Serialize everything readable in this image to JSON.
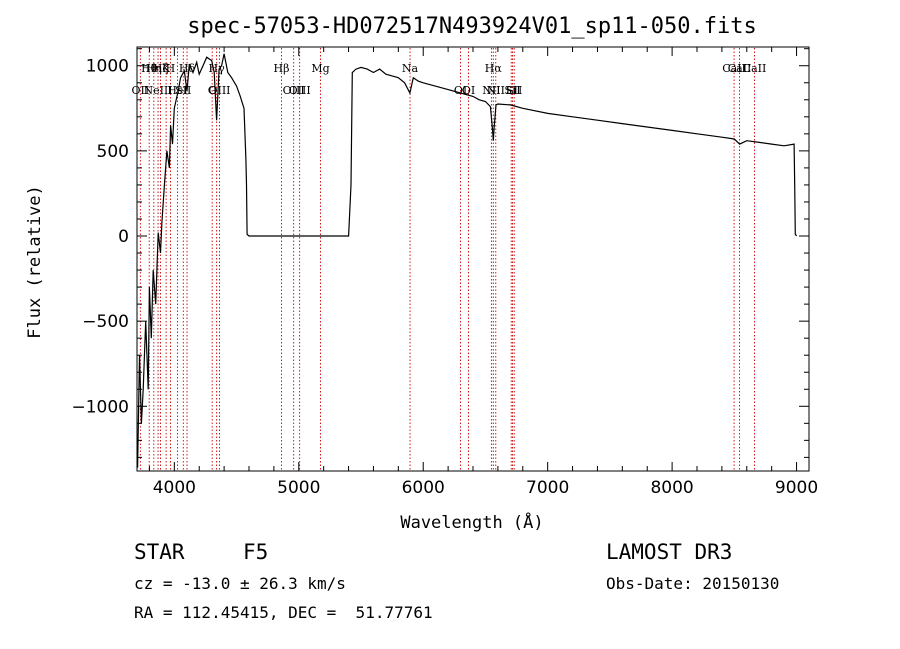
{
  "chart_data": {
    "type": "line",
    "title": "spec-57053-HD072517N493924V01_sp11-050.fits",
    "xlabel": "Wavelength (Å)",
    "ylabel": "Flux (relative)",
    "xlim": [
      3700,
      9100
    ],
    "ylim": [
      -1380,
      1110
    ],
    "x_ticks": [
      4000,
      5000,
      6000,
      7000,
      8000,
      9000
    ],
    "y_ticks": [
      -1000,
      -500,
      0,
      500,
      1000
    ],
    "grid": false,
    "line_color": "#000000",
    "marker_color": "#cc0000",
    "series": [
      {
        "x": [
          3705,
          3720,
          3735,
          3750,
          3770,
          3790,
          3800,
          3815,
          3830,
          3850,
          3870,
          3889,
          3900,
          3920,
          3940,
          3960,
          3970,
          3985,
          4000,
          4030,
          4050,
          4080,
          4102,
          4120,
          4150,
          4180,
          4200,
          4230,
          4260,
          4300,
          4320,
          4340,
          4360,
          4380,
          4400,
          4430,
          4460,
          4500,
          4530,
          4560,
          4575,
          4580,
          4585,
          4600,
          5000,
          5400,
          5420,
          5430,
          5460,
          5500,
          5550,
          5600,
          5650,
          5700,
          5750,
          5800,
          5850,
          5893,
          5920,
          5960,
          6000,
          6100,
          6200,
          6300,
          6400,
          6450,
          6500,
          6540,
          6555,
          6563,
          6570,
          6585,
          6600,
          6700,
          6800,
          7000,
          7200,
          7400,
          7600,
          7800,
          8000,
          8200,
          8400,
          8500,
          8542,
          8600,
          8700,
          8800,
          8900,
          8980,
          8985,
          8990,
          9000
        ],
        "y": [
          -1360,
          -700,
          -1100,
          -900,
          -500,
          -900,
          -300,
          -600,
          -200,
          -400,
          20,
          -100,
          80,
          300,
          500,
          400,
          650,
          540,
          750,
          850,
          930,
          970,
          850,
          1010,
          960,
          1020,
          950,
          1000,
          1050,
          1030,
          960,
          680,
          980,
          1000,
          1070,
          960,
          930,
          880,
          820,
          750,
          450,
          300,
          10,
          0,
          0,
          0,
          300,
          960,
          980,
          990,
          980,
          960,
          980,
          950,
          940,
          930,
          900,
          840,
          930,
          910,
          900,
          880,
          860,
          840,
          820,
          800,
          790,
          760,
          640,
          560,
          640,
          770,
          775,
          770,
          750,
          720,
          700,
          680,
          660,
          640,
          620,
          600,
          580,
          570,
          540,
          560,
          550,
          540,
          530,
          540,
          300,
          10,
          0
        ]
      }
    ],
    "line_markers": [
      {
        "wl": 3798,
        "row": 0,
        "label": "Hθ"
      },
      {
        "wl": 3835,
        "row": 0,
        "label": "Hη"
      },
      {
        "wl": 3889,
        "row": 0,
        "label": "Hζ"
      },
      {
        "wl": 3934,
        "row": 0,
        "label": "K"
      },
      {
        "wl": 3969,
        "row": 0,
        "label": "H"
      },
      {
        "wl": 4102,
        "row": 0,
        "label": "Hδ"
      },
      {
        "wl": 4340,
        "row": 0,
        "label": "Hγ"
      },
      {
        "wl": 4861,
        "row": 0,
        "label": "Hβ"
      },
      {
        "wl": 5175,
        "row": 0,
        "label": "Mg"
      },
      {
        "wl": 5894,
        "row": 0,
        "label": "Na"
      },
      {
        "wl": 6563,
        "row": 0,
        "label": "Hα"
      },
      {
        "wl": 8498,
        "row": 0,
        "label": "CaII"
      },
      {
        "wl": 8542,
        "row": 0,
        "label": "CaII"
      },
      {
        "wl": 8662,
        "row": 0,
        "label": "CaII"
      },
      {
        "wl": 3727,
        "row": 1,
        "label": "OII"
      },
      {
        "wl": 3869,
        "row": 1,
        "label": "NeIII"
      },
      {
        "wl": 4026,
        "row": 1,
        "label": "HeI"
      },
      {
        "wl": 4072,
        "row": 1,
        "label": "SII"
      },
      {
        "wl": 4304,
        "row": 1,
        "label": "G"
      },
      {
        "wl": 4363,
        "row": 1,
        "label": "OIII"
      },
      {
        "wl": 4959,
        "row": 1,
        "label": "OIII"
      },
      {
        "wl": 5007,
        "row": 1,
        "label": "OIII"
      },
      {
        "wl": 6300,
        "row": 1,
        "label": "OI"
      },
      {
        "wl": 6364,
        "row": 1,
        "label": "OI"
      },
      {
        "wl": 6548,
        "row": 1,
        "label": "NII"
      },
      {
        "wl": 6583,
        "row": 1,
        "label": "NII"
      },
      {
        "wl": 6707,
        "row": 1,
        "label": "Li"
      },
      {
        "wl": 6717,
        "row": 1,
        "label": "SII"
      },
      {
        "wl": 6731,
        "row": 1,
        "label": "SII"
      }
    ]
  },
  "info": {
    "class": "STAR",
    "subclass": "F5",
    "survey": "LAMOST DR3",
    "redshift": "cz = -13.0 ± 26.3 km/s",
    "obs_date": "Obs-Date: 20150130",
    "coords": "RA = 112.45415, DEC =  51.77761"
  }
}
